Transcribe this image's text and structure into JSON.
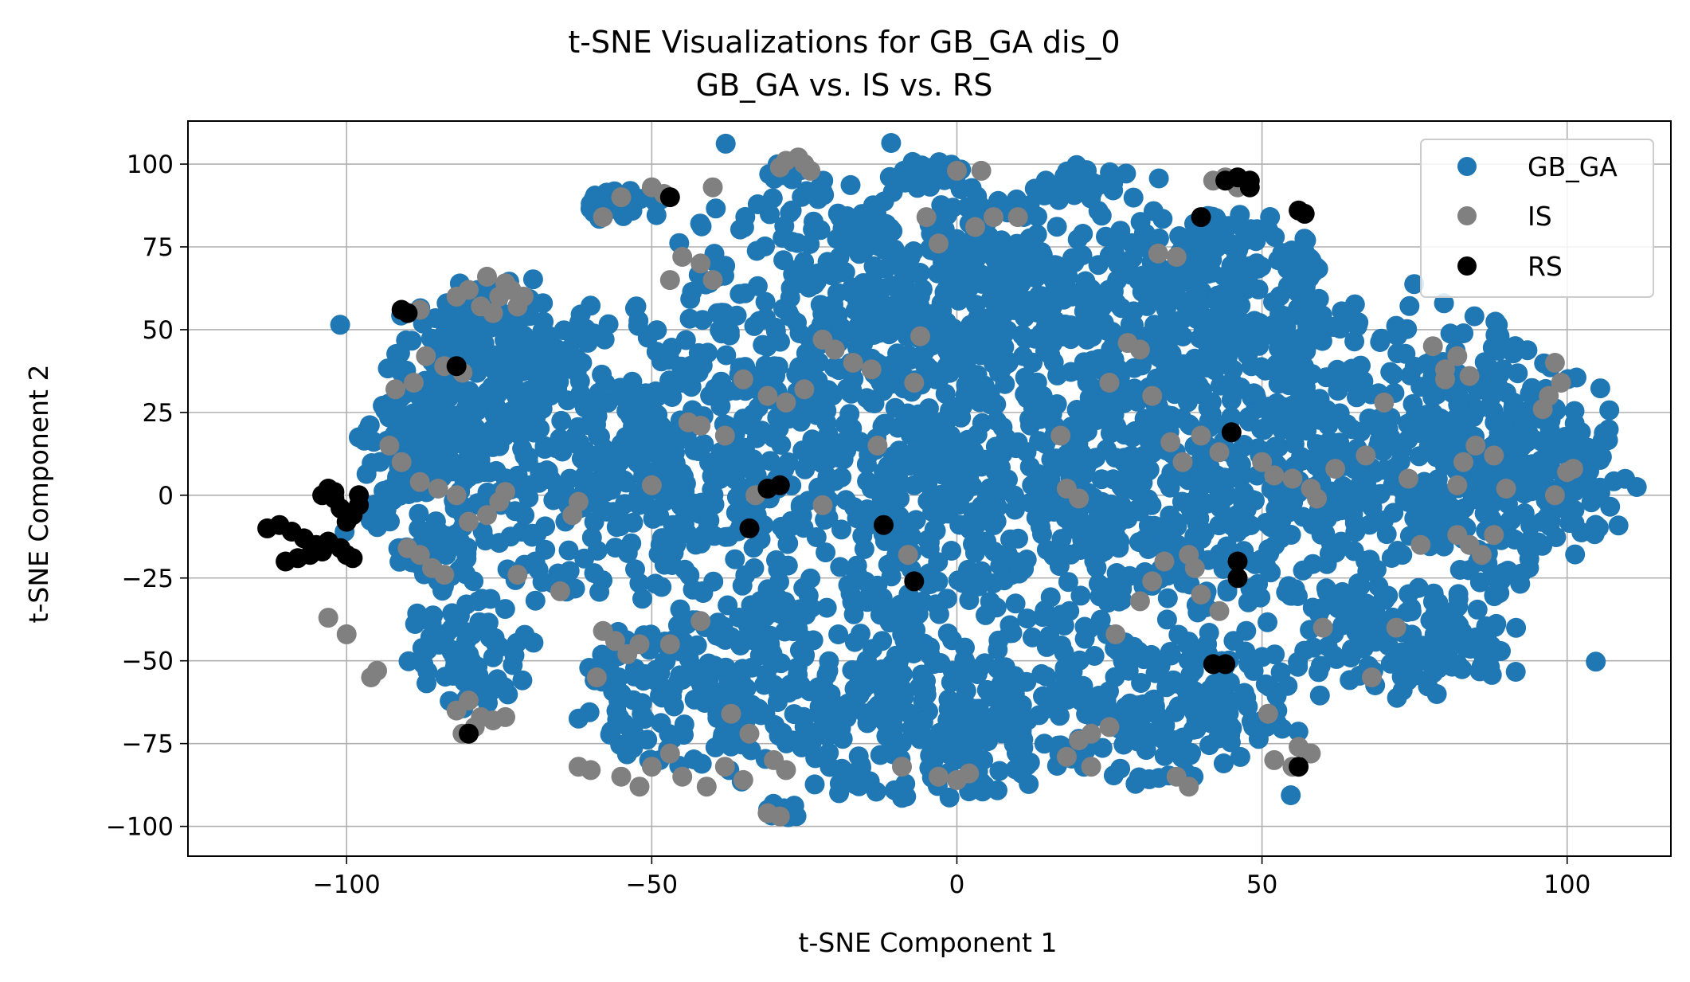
{
  "chart_data": {
    "type": "scatter",
    "title": "t-SNE Visualizations for GB_GA dis_0",
    "subtitle": "GB_GA vs. IS vs. RS",
    "xlabel": "t-SNE Component 1",
    "ylabel": "t-SNE Component 2",
    "xlim": [
      -126,
      117
    ],
    "ylim": [
      -109,
      113
    ],
    "xticks": [
      -100,
      -50,
      0,
      50,
      100
    ],
    "yticks": [
      -100,
      -75,
      -50,
      -25,
      0,
      25,
      50,
      75,
      100
    ],
    "xtick_labels": [
      "−100",
      "−50",
      "0",
      "50",
      "100"
    ],
    "ytick_labels": [
      "−100",
      "−75",
      "−50",
      "−25",
      "0",
      "25",
      "50",
      "75",
      "100"
    ],
    "grid": true,
    "legend": {
      "position": "top-right"
    },
    "series": [
      {
        "name": "GB_GA",
        "color": "#1f77b4",
        "clusters": [
          {
            "cx": -5,
            "cy": 5,
            "rx": 50,
            "ry": 60,
            "n": 900
          },
          {
            "cx": 60,
            "cy": 10,
            "rx": 45,
            "ry": 48,
            "n": 650
          },
          {
            "cx": -62,
            "cy": 15,
            "rx": 30,
            "ry": 45,
            "n": 380
          },
          {
            "cx": -78,
            "cy": 40,
            "rx": 14,
            "ry": 24,
            "n": 130
          },
          {
            "cx": -15,
            "cy": 65,
            "rx": 30,
            "ry": 30,
            "n": 260
          },
          {
            "cx": 20,
            "cy": 70,
            "rx": 22,
            "ry": 28,
            "n": 200
          },
          {
            "cx": 45,
            "cy": 60,
            "rx": 15,
            "ry": 25,
            "n": 140
          },
          {
            "cx": -40,
            "cy": -60,
            "rx": 20,
            "ry": 22,
            "n": 190
          },
          {
            "cx": -5,
            "cy": -70,
            "rx": 25,
            "ry": 22,
            "n": 220
          },
          {
            "cx": 35,
            "cy": -65,
            "rx": 20,
            "ry": 22,
            "n": 180
          },
          {
            "cx": 75,
            "cy": -45,
            "rx": 18,
            "ry": 15,
            "n": 130
          },
          {
            "cx": 88,
            "cy": 5,
            "rx": 14,
            "ry": 30,
            "n": 140
          },
          {
            "cx": -88,
            "cy": 5,
            "rx": 10,
            "ry": 30,
            "n": 110
          },
          {
            "cx": -80,
            "cy": -45,
            "rx": 10,
            "ry": 20,
            "n": 80
          },
          {
            "cx": -55,
            "cy": 88,
            "rx": 7,
            "ry": 5,
            "n": 25
          },
          {
            "cx": -28,
            "cy": 98,
            "rx": 4,
            "ry": 3,
            "n": 10
          },
          {
            "cx": -5,
            "cy": 97,
            "rx": 6,
            "ry": 4,
            "n": 20
          },
          {
            "cx": 22,
            "cy": 95,
            "rx": 6,
            "ry": 4,
            "n": 15
          },
          {
            "cx": 44,
            "cy": 80,
            "rx": 5,
            "ry": 6,
            "n": 15
          },
          {
            "cx": 57,
            "cy": 72,
            "rx": 5,
            "ry": 5,
            "n": 12
          },
          {
            "cx": 103,
            "cy": 10,
            "rx": 3,
            "ry": 15,
            "n": 12
          },
          {
            "cx": -28,
            "cy": -95,
            "rx": 4,
            "ry": 3,
            "n": 10
          }
        ]
      },
      {
        "name": "IS",
        "color": "#808080",
        "points": [
          [
            -75,
            60
          ],
          [
            -74,
            64
          ],
          [
            -78,
            57
          ],
          [
            -72,
            57
          ],
          [
            -80,
            62
          ],
          [
            -77,
            66
          ],
          [
            -73,
            62
          ],
          [
            -82,
            60
          ],
          [
            -76,
            55
          ],
          [
            -71,
            60
          ],
          [
            -88,
            56
          ],
          [
            -92,
            32
          ],
          [
            -89,
            34
          ],
          [
            -87,
            42
          ],
          [
            -84,
            39
          ],
          [
            -81,
            37
          ],
          [
            -93,
            15
          ],
          [
            -91,
            10
          ],
          [
            -88,
            4
          ],
          [
            -85,
            2
          ],
          [
            -82,
            0
          ],
          [
            -75,
            -2
          ],
          [
            -74,
            1
          ],
          [
            -77,
            -6
          ],
          [
            -80,
            -8
          ],
          [
            -90,
            -16
          ],
          [
            -88,
            -18
          ],
          [
            -86,
            -22
          ],
          [
            -84,
            -24
          ],
          [
            -103,
            -37
          ],
          [
            -100,
            -42
          ],
          [
            -96,
            -55
          ],
          [
            -95,
            -53
          ],
          [
            -82,
            -65
          ],
          [
            -80,
            -62
          ],
          [
            -78,
            -67
          ],
          [
            -76,
            -68
          ],
          [
            -79,
            -70
          ],
          [
            -81,
            -72
          ],
          [
            -74,
            -67
          ],
          [
            -72,
            -24
          ],
          [
            -65,
            -29
          ],
          [
            -62,
            -2
          ],
          [
            -63,
            -6
          ],
          [
            -58,
            -41
          ],
          [
            -56,
            -44
          ],
          [
            -54,
            -48
          ],
          [
            -59,
            -55
          ],
          [
            -52,
            -45
          ],
          [
            -55,
            90
          ],
          [
            -50,
            93
          ],
          [
            -48,
            91
          ],
          [
            -40,
            93
          ],
          [
            -58,
            84
          ],
          [
            -40,
            65
          ],
          [
            -42,
            70
          ],
          [
            -45,
            72
          ],
          [
            -47,
            65
          ],
          [
            -28,
            101
          ],
          [
            -26,
            102
          ],
          [
            -25,
            100
          ],
          [
            -24,
            98
          ],
          [
            -29,
            99
          ],
          [
            -22,
            47
          ],
          [
            -17,
            40
          ],
          [
            -20,
            44
          ],
          [
            -14,
            38
          ],
          [
            -28,
            28
          ],
          [
            -25,
            32
          ],
          [
            -31,
            30
          ],
          [
            -35,
            35
          ],
          [
            -38,
            18
          ],
          [
            -42,
            21
          ],
          [
            -44,
            22
          ],
          [
            -33,
            0
          ],
          [
            -50,
            3
          ],
          [
            -47,
            -45
          ],
          [
            -42,
            -38
          ],
          [
            -55,
            -85
          ],
          [
            -52,
            -88
          ],
          [
            -50,
            -82
          ],
          [
            -47,
            -78
          ],
          [
            -45,
            -85
          ],
          [
            -41,
            -88
          ],
          [
            -38,
            -82
          ],
          [
            -35,
            -86
          ],
          [
            -60,
            -83
          ],
          [
            -62,
            -82
          ],
          [
            -30,
            -80
          ],
          [
            -28,
            -83
          ],
          [
            -31,
            -96
          ],
          [
            -29,
            -97
          ],
          [
            -34,
            -72
          ],
          [
            -37,
            -66
          ],
          [
            -22,
            -3
          ],
          [
            -13,
            15
          ],
          [
            -8,
            -18
          ],
          [
            -7,
            34
          ],
          [
            -6,
            48
          ],
          [
            -5,
            84
          ],
          [
            -3,
            76
          ],
          [
            3,
            81
          ],
          [
            4,
            98
          ],
          [
            0,
            98
          ],
          [
            6,
            84
          ],
          [
            10,
            84
          ],
          [
            17,
            18
          ],
          [
            20,
            -1
          ],
          [
            18,
            2
          ],
          [
            20,
            -74
          ],
          [
            18,
            -79
          ],
          [
            22,
            -72
          ],
          [
            25,
            34
          ],
          [
            28,
            46
          ],
          [
            30,
            44
          ],
          [
            32,
            30
          ],
          [
            35,
            16
          ],
          [
            37,
            10
          ],
          [
            40,
            18
          ],
          [
            43,
            13
          ],
          [
            38,
            -18
          ],
          [
            39,
            -22
          ],
          [
            34,
            -20
          ],
          [
            32,
            -26
          ],
          [
            30,
            -32
          ],
          [
            40,
            -30
          ],
          [
            43,
            -35
          ],
          [
            26,
            -42
          ],
          [
            22,
            -82
          ],
          [
            25,
            -70
          ],
          [
            36,
            72
          ],
          [
            33,
            73
          ],
          [
            42,
            95
          ],
          [
            44,
            96
          ],
          [
            46,
            93
          ],
          [
            50,
            10
          ],
          [
            52,
            6
          ],
          [
            55,
            5
          ],
          [
            58,
            2
          ],
          [
            59,
            -1
          ],
          [
            62,
            8
          ],
          [
            67,
            12
          ],
          [
            70,
            28
          ],
          [
            72,
            -40
          ],
          [
            68,
            -55
          ],
          [
            60,
            -40
          ],
          [
            55,
            -82
          ],
          [
            52,
            -80
          ],
          [
            56,
            -76
          ],
          [
            58,
            -78
          ],
          [
            51,
            -66
          ],
          [
            78,
            45
          ],
          [
            80,
            38
          ],
          [
            82,
            42
          ],
          [
            84,
            36
          ],
          [
            80,
            35
          ],
          [
            74,
            5
          ],
          [
            76,
            -15
          ],
          [
            82,
            -12
          ],
          [
            84,
            -15
          ],
          [
            86,
            -18
          ],
          [
            88,
            -12
          ],
          [
            83,
            10
          ],
          [
            85,
            15
          ],
          [
            88,
            12
          ],
          [
            90,
            2
          ],
          [
            82,
            3
          ],
          [
            98,
            40
          ],
          [
            97,
            30
          ],
          [
            96,
            26
          ],
          [
            99,
            34
          ],
          [
            100,
            7
          ],
          [
            98,
            0
          ],
          [
            101,
            8
          ],
          [
            38,
            -88
          ],
          [
            36,
            -85
          ],
          [
            -9,
            -82
          ],
          [
            -3,
            -85
          ],
          [
            0,
            -86
          ],
          [
            2,
            -84
          ]
        ]
      },
      {
        "name": "RS",
        "color": "#000000",
        "points": [
          [
            -113,
            -10
          ],
          [
            -111,
            -9
          ],
          [
            -109,
            -11
          ],
          [
            -107,
            -13
          ],
          [
            -105,
            -15
          ],
          [
            -104,
            -17
          ],
          [
            -106,
            -18
          ],
          [
            -108,
            -19
          ],
          [
            -110,
            -20
          ],
          [
            -103,
            -14
          ],
          [
            -101,
            -16
          ],
          [
            -100,
            -18
          ],
          [
            -99,
            -19
          ],
          [
            -103,
            2
          ],
          [
            -104,
            0
          ],
          [
            -102,
            -1
          ],
          [
            -101,
            -4
          ],
          [
            -100,
            -8
          ],
          [
            -99,
            -6
          ],
          [
            -98,
            -3
          ],
          [
            -98,
            0
          ],
          [
            -102,
            1
          ],
          [
            -91,
            56
          ],
          [
            -90,
            55
          ],
          [
            -82,
            39
          ],
          [
            -80,
            -72
          ],
          [
            -47,
            90
          ],
          [
            -34,
            -10
          ],
          [
            -31,
            2
          ],
          [
            -29,
            3
          ],
          [
            -12,
            -9
          ],
          [
            -7,
            -26
          ],
          [
            40,
            84
          ],
          [
            44,
            95
          ],
          [
            46,
            96
          ],
          [
            48,
            95
          ],
          [
            48,
            93
          ],
          [
            56,
            86
          ],
          [
            57,
            85
          ],
          [
            45,
            19
          ],
          [
            46,
            -20
          ],
          [
            46,
            -25
          ],
          [
            42,
            -51
          ],
          [
            44,
            -51
          ],
          [
            56,
            -82
          ]
        ]
      }
    ]
  }
}
